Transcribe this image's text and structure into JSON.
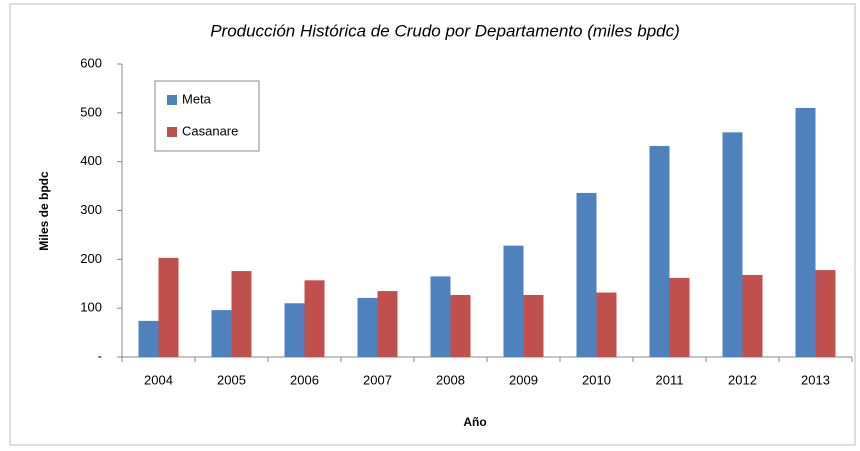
{
  "chart_data": {
    "type": "bar",
    "title": "Producción Histórica de Crudo por Departamento (miles bpdc)",
    "x_label": "Año",
    "y_label": "Miles de bpdc",
    "categories": [
      "2004",
      "2005",
      "2006",
      "2007",
      "2008",
      "2009",
      "2010",
      "2011",
      "2012",
      "2013"
    ],
    "series": [
      {
        "name": "Meta",
        "color": "#4f81bd",
        "values": [
          74,
          96,
          110,
          121,
          165,
          228,
          336,
          432,
          460,
          510
        ]
      },
      {
        "name": "Casanare",
        "color": "#c0504d",
        "values": [
          203,
          176,
          157,
          135,
          127,
          127,
          132,
          162,
          168,
          178
        ]
      }
    ],
    "ylim": [
      0,
      600
    ],
    "yticks": [
      {
        "value": 0,
        "label": "-"
      },
      100,
      200,
      300,
      400,
      500,
      600
    ],
    "grid": false,
    "legend": "upper left"
  }
}
